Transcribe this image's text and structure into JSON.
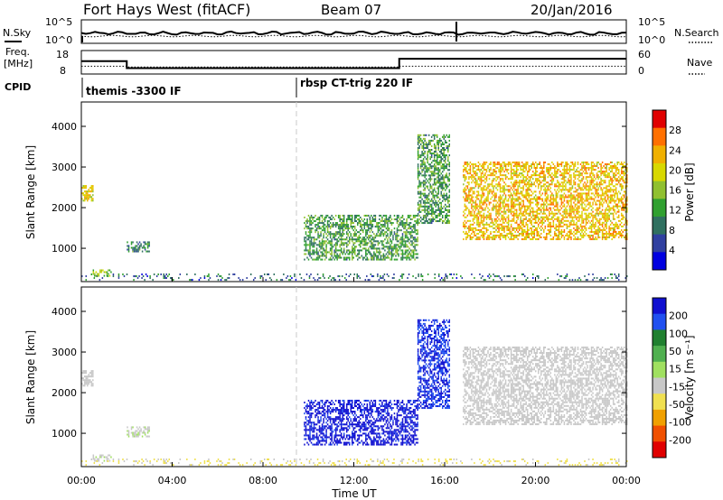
{
  "header": {
    "station": "Fort Hays West (fitACF)",
    "beam": "Beam 07",
    "date": "20/Jan/2016"
  },
  "noise_panel": {
    "left_label": "N.Sky",
    "right_label": "N.Search",
    "left_ticks": [
      "10^5",
      "10^0"
    ],
    "right_ticks": [
      "10^5",
      "10^0"
    ]
  },
  "freq_panel": {
    "left_label_1": "Freq.",
    "left_label_2": "[MHz]",
    "right_label": "Nave",
    "left_ticks": [
      "18",
      "8"
    ],
    "right_ticks": [
      "60",
      "0"
    ]
  },
  "cpid_panel": {
    "label": "CPID",
    "modes": [
      "themis -3300 IF",
      "rbsp CT-trig 220 IF"
    ]
  },
  "power_colorbar": {
    "label": "Power [dB]",
    "ticks": [
      "28",
      "24",
      "20",
      "16",
      "12",
      "8",
      "4"
    ],
    "colors": [
      "#e00000",
      "#ff7000",
      "#f0b000",
      "#d8d800",
      "#90c030",
      "#30a030",
      "#307060",
      "#3040a0",
      "#0000e0"
    ]
  },
  "velocity_colorbar": {
    "label": "Velocity [m s⁻¹]",
    "ticks": [
      "200",
      "100",
      "50",
      "15",
      "-15",
      "-50",
      "-100",
      "-200"
    ],
    "colors": [
      "#1010d0",
      "#2050f0",
      "#208030",
      "#50b050",
      "#a0e060",
      "#c8c8c8",
      "#f0e050",
      "#f0a000",
      "#f05000",
      "#e00000"
    ]
  },
  "axes": {
    "ylabel": "Slant Range [km]",
    "xlabel": "Time UT",
    "yticks": [
      "4000",
      "3000",
      "2000",
      "1000"
    ],
    "xticks": [
      "00:00",
      "04:00",
      "08:00",
      "12:00",
      "16:00",
      "20:00",
      "00:00"
    ]
  },
  "chart_data": {
    "type": "heatmap",
    "title": "Fort Hays West (fitACF)",
    "xlabel": "Time UT",
    "ylabel": "Slant Range [km]",
    "xlim_hours": [
      0,
      24
    ],
    "ylim_km": [
      180,
      4600
    ],
    "mode_change_hour": 9.5,
    "regions": [
      {
        "name": "early_patch",
        "t": [
          0.0,
          0.5
        ],
        "range": [
          2150,
          2550
        ],
        "power": 20,
        "velocity": 0
      },
      {
        "name": "near_range_early",
        "t": [
          0.5,
          1.3
        ],
        "range": [
          300,
          450
        ],
        "power": 16,
        "velocity": 5
      },
      {
        "name": "scatter_early",
        "t": [
          2.0,
          3.0
        ],
        "range": [
          900,
          1150
        ],
        "power": 10,
        "velocity": 10
      },
      {
        "name": "morning_band",
        "t": [
          9.8,
          14.8
        ],
        "range": [
          700,
          1800
        ],
        "power": 12,
        "velocity": 220
      },
      {
        "name": "afternoon_plume",
        "t": [
          14.8,
          16.2
        ],
        "range": [
          1600,
          3800
        ],
        "power": 12,
        "velocity": 200
      },
      {
        "name": "evening_sheet",
        "t": [
          16.8,
          24.0
        ],
        "range": [
          1200,
          3100
        ],
        "power": 22,
        "velocity": 0
      },
      {
        "name": "near_range_ground",
        "t": [
          0.0,
          24.0
        ],
        "range": [
          200,
          380
        ],
        "power": 8,
        "velocity": -20
      }
    ],
    "noise_sky_series": "near 10^3 throughout, spike near 16:30",
    "frequency_mhz": [
      {
        "t": [
          0,
          2
        ],
        "value": 13.5
      },
      {
        "t": [
          2,
          14
        ],
        "value": 10.5
      },
      {
        "t": [
          14,
          24
        ],
        "value": 14.5
      }
    ],
    "nave": [
      {
        "t": [
          0,
          2
        ],
        "value": 20
      },
      {
        "t": [
          2,
          14
        ],
        "value": 18
      },
      {
        "t": [
          14,
          24
        ],
        "value": 20
      }
    ]
  }
}
